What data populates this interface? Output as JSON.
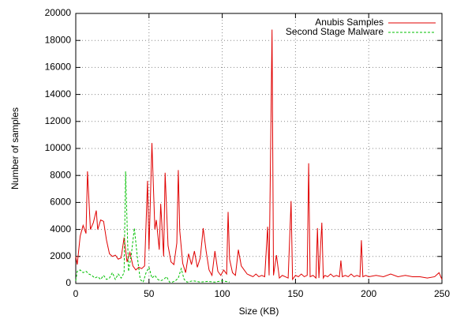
{
  "chart_data": {
    "type": "line",
    "xlabel": "Size (KB)",
    "ylabel": "Number of samples",
    "xlim": [
      0,
      250
    ],
    "xticks": [
      0,
      50,
      100,
      150,
      200,
      250
    ],
    "ylim": [
      0,
      20000
    ],
    "yticks": [
      0,
      2000,
      4000,
      6000,
      8000,
      10000,
      12000,
      14000,
      16000,
      18000,
      20000
    ],
    "grid": true,
    "legend": "top-right",
    "series": [
      {
        "name": "Anubis Samples",
        "color": "#e00000",
        "dash": false,
        "x": [
          0,
          1,
          3,
          5,
          7,
          8,
          10,
          12,
          14,
          15,
          17,
          19,
          21,
          23,
          25,
          27,
          29,
          31,
          33,
          35,
          37,
          39,
          41,
          43,
          45,
          47,
          49,
          50,
          52,
          54,
          55,
          57,
          58,
          60,
          61,
          63,
          65,
          67,
          69,
          70,
          71,
          73,
          75,
          77,
          79,
          81,
          83,
          85,
          87,
          89,
          91,
          93,
          95,
          97,
          99,
          101,
          103,
          104,
          105,
          107,
          109,
          111,
          113,
          115,
          117,
          119,
          121,
          123,
          125,
          127,
          129,
          131,
          132,
          134,
          135,
          137,
          139,
          141,
          143,
          145,
          147,
          148,
          150,
          152,
          154,
          156,
          158,
          159,
          160,
          162,
          164,
          165,
          166,
          168,
          169,
          170,
          172,
          174,
          176,
          178,
          180,
          181,
          182,
          184,
          186,
          188,
          190,
          192,
          194,
          195,
          196,
          198,
          200,
          205,
          210,
          215,
          220,
          225,
          230,
          235,
          240,
          245,
          248,
          250
        ],
        "values": [
          2000,
          1400,
          3500,
          4300,
          3700,
          8300,
          4000,
          4500,
          5400,
          4000,
          4700,
          4600,
          3200,
          2200,
          2000,
          2100,
          1800,
          1900,
          3400,
          1600,
          2300,
          1300,
          1000,
          1200,
          1100,
          1300,
          7600,
          2500,
          10400,
          4000,
          4700,
          2500,
          5900,
          2000,
          8200,
          2800,
          1600,
          1400,
          3000,
          8400,
          3900,
          1500,
          800,
          2200,
          1400,
          2400,
          1200,
          1900,
          4100,
          2400,
          1000,
          600,
          2400,
          900,
          600,
          1000,
          700,
          5300,
          1800,
          800,
          600,
          2500,
          1300,
          1000,
          700,
          600,
          500,
          700,
          500,
          600,
          500,
          4200,
          600,
          18800,
          600,
          2100,
          400,
          600,
          500,
          400,
          6100,
          300,
          600,
          500,
          700,
          500,
          600,
          8900,
          500,
          600,
          400,
          4100,
          400,
          4500,
          400,
          600,
          500,
          700,
          500,
          600,
          500,
          1700,
          500,
          600,
          500,
          700,
          500,
          600,
          500,
          3200,
          500,
          600,
          500,
          600,
          500,
          700,
          500,
          600,
          500,
          500,
          400,
          500,
          800,
          300
        ]
      },
      {
        "name": "Second Stage Malware",
        "color": "#00c000",
        "dash": true,
        "x": [
          0,
          1,
          3,
          5,
          7,
          9,
          11,
          13,
          15,
          17,
          19,
          21,
          23,
          25,
          27,
          29,
          31,
          33,
          34,
          36,
          38,
          40,
          42,
          44,
          46,
          48,
          50,
          52,
          54,
          56,
          58,
          60,
          62,
          64,
          66,
          68,
          70,
          72,
          74,
          76,
          80,
          85,
          90,
          95,
          100,
          105
        ],
        "values": [
          200,
          900,
          1000,
          800,
          900,
          700,
          600,
          400,
          500,
          300,
          600,
          300,
          400,
          800,
          300,
          700,
          400,
          800,
          8300,
          900,
          2200,
          4100,
          2000,
          300,
          100,
          800,
          1200,
          400,
          600,
          300,
          200,
          300,
          500,
          100,
          100,
          200,
          400,
          1100,
          300,
          100,
          200,
          100,
          150,
          100,
          200,
          100
        ]
      }
    ]
  }
}
